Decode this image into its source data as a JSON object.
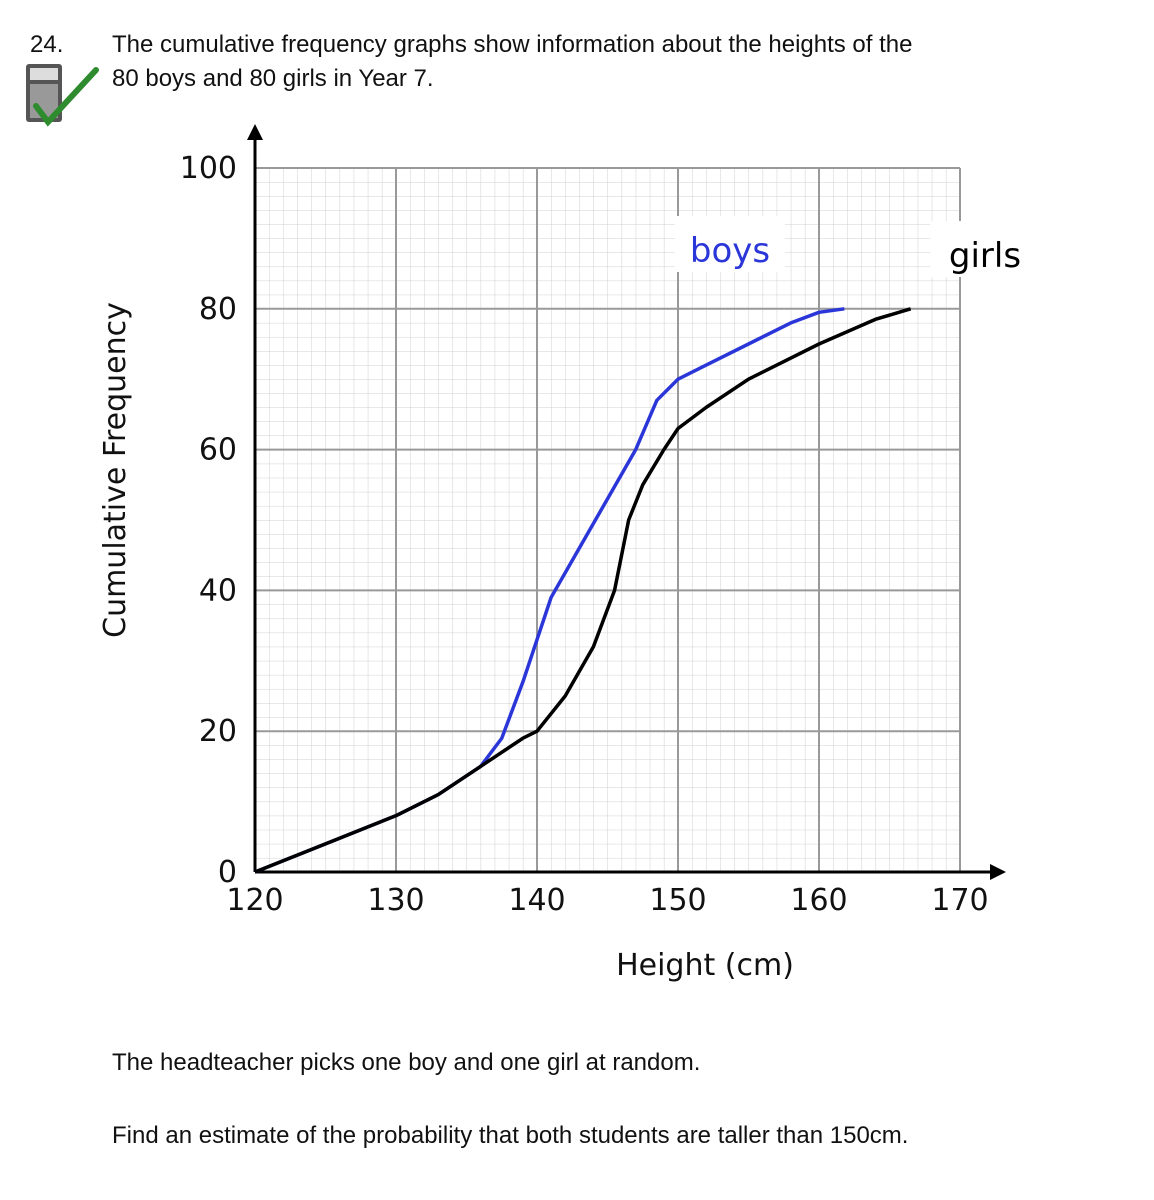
{
  "question": {
    "number": "24.",
    "lines": [
      "The cumulative frequency graphs show information about the heights of the",
      "80 boys and 80 girls in Year 7."
    ]
  },
  "chart_data": {
    "type": "line",
    "x_label": "Height (cm)",
    "y_label": "Cumulative Frequency",
    "xlim": [
      120,
      170
    ],
    "ylim": [
      0,
      100
    ],
    "xticks": [
      120,
      130,
      140,
      150,
      160,
      170
    ],
    "yticks": [
      0,
      20,
      40,
      60,
      80,
      100
    ],
    "grid": true,
    "series": [
      {
        "name": "boys",
        "color": "#2b36d9",
        "x": [
          120,
          125,
          130,
          133,
          136,
          137.5,
          139,
          140,
          141,
          143,
          145,
          147,
          148.5,
          150,
          152,
          155,
          158,
          160,
          161.8
        ],
        "values": [
          0,
          4,
          8,
          11,
          15,
          19,
          27,
          33,
          39,
          46,
          53,
          60,
          67,
          70,
          72,
          75,
          78,
          79.5,
          80
        ]
      },
      {
        "name": "girls",
        "color": "#000000",
        "x": [
          120,
          125,
          130,
          133,
          136,
          139,
          140,
          142,
          144,
          145.5,
          146.5,
          147.5,
          149,
          150,
          152,
          155,
          160,
          164,
          166.5
        ],
        "values": [
          0,
          4,
          8,
          11,
          15,
          19,
          20,
          25,
          32,
          40,
          50,
          55,
          60,
          63,
          66,
          70,
          75,
          78.5,
          80
        ]
      }
    ]
  },
  "footer": [
    "The headteacher picks one boy and one girl at random.",
    "Find an estimate of the probability that both students are taller than 150cm."
  ]
}
